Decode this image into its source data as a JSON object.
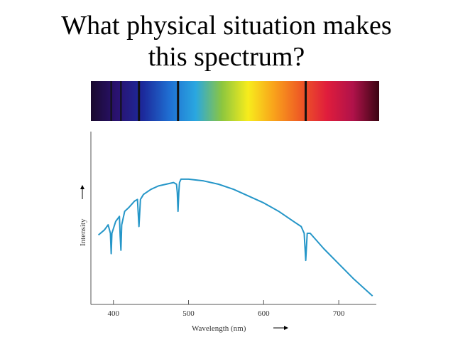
{
  "slide": {
    "title_line1": "What physical situation makes",
    "title_line2": "this spectrum?"
  },
  "spectrum_strip": {
    "band_colors": [
      "#1a0a2e",
      "#2a1270",
      "#1c2a9c",
      "#1f6fd2",
      "#2aa7e0",
      "#8cc63f",
      "#f7ec1c",
      "#f9a11b",
      "#ee5a24",
      "#e01d3c",
      "#b0124a",
      "#3a0512"
    ],
    "line_wavelengths_nm": [
      397,
      410,
      434,
      486,
      656
    ]
  },
  "chart_data": {
    "type": "line",
    "title": "",
    "xlabel": "Wavelength (nm)",
    "ylabel": "Intensity",
    "xlim": [
      370,
      750
    ],
    "ylim": [
      0,
      1
    ],
    "x_ticks": [
      400,
      500,
      600,
      700
    ],
    "x_tick_labels": [
      "400",
      "500",
      "600",
      "700"
    ],
    "grid": false,
    "line_color": "#2596c8",
    "series": [
      {
        "name": "",
        "x": [
          380,
          388,
          393,
          396,
          397,
          398,
          403,
          408,
          409,
          410,
          411,
          415,
          420,
          428,
          432,
          434,
          436,
          440,
          450,
          460,
          470,
          480,
          484,
          485,
          486,
          487,
          488,
          490,
          500,
          520,
          540,
          560,
          580,
          600,
          620,
          640,
          650,
          654,
          655,
          656,
          657,
          658,
          662,
          680,
          700,
          720,
          745
        ],
        "y": [
          0.41,
          0.44,
          0.47,
          0.42,
          0.3,
          0.42,
          0.49,
          0.52,
          0.4,
          0.32,
          0.47,
          0.55,
          0.57,
          0.61,
          0.62,
          0.46,
          0.62,
          0.65,
          0.68,
          0.7,
          0.71,
          0.72,
          0.71,
          0.66,
          0.55,
          0.66,
          0.72,
          0.74,
          0.74,
          0.73,
          0.71,
          0.68,
          0.64,
          0.6,
          0.55,
          0.49,
          0.46,
          0.42,
          0.34,
          0.26,
          0.34,
          0.42,
          0.42,
          0.33,
          0.24,
          0.15,
          0.05
        ]
      }
    ]
  }
}
